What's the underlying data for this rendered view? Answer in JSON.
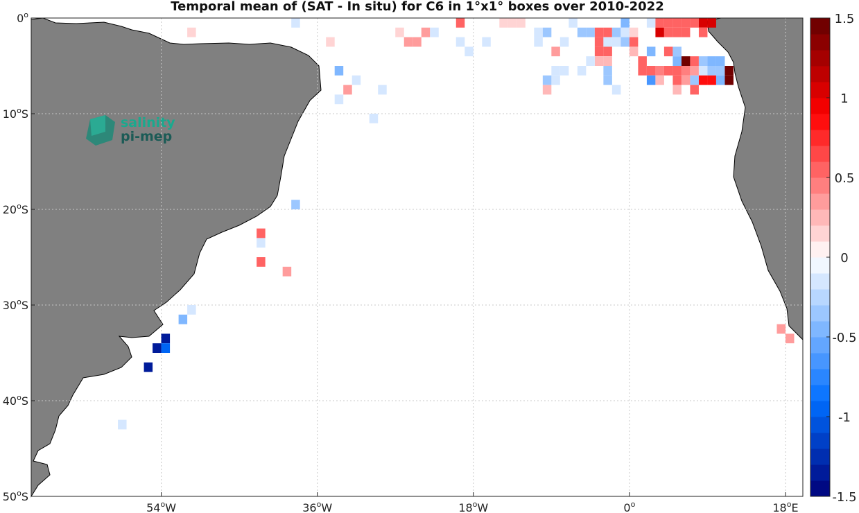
{
  "chart_data": {
    "type": "heatmap",
    "title": "Temporal mean of (SAT - In situ) for C6 in 1°x1° boxes over 2010-2022",
    "xlim": [
      -69,
      20
    ],
    "ylim": [
      -50,
      0
    ],
    "x_ticks": [
      {
        "value": -54,
        "label": "54",
        "hemi": "W"
      },
      {
        "value": -36,
        "label": "36",
        "hemi": "W"
      },
      {
        "value": -18,
        "label": "18",
        "hemi": "W"
      },
      {
        "value": 0,
        "label": "0",
        "hemi": ""
      },
      {
        "value": 18,
        "label": "18",
        "hemi": "E"
      }
    ],
    "y_ticks": [
      {
        "value": 0,
        "label": "0",
        "hemi": ""
      },
      {
        "value": -10,
        "label": "10",
        "hemi": "S"
      },
      {
        "value": -20,
        "label": "20",
        "hemi": "S"
      },
      {
        "value": -30,
        "label": "30",
        "hemi": "S"
      },
      {
        "value": -40,
        "label": "40",
        "hemi": "S"
      },
      {
        "value": -50,
        "label": "50",
        "hemi": "S"
      }
    ],
    "grid": true,
    "colorbar": {
      "min": -1.5,
      "max": 1.5,
      "levels": 30,
      "ticks": [
        {
          "value": 1.5,
          "label": "1.5"
        },
        {
          "value": 1,
          "label": "1"
        },
        {
          "value": 0.5,
          "label": "0.5"
        },
        {
          "value": 0,
          "label": "0"
        },
        {
          "value": -0.5,
          "label": "-0.5"
        },
        {
          "value": -1,
          "label": "-1"
        },
        {
          "value": -1.5,
          "label": "-1.5"
        }
      ]
    },
    "cells": [
      [
        -38.5,
        -0.5,
        -0.1
      ],
      [
        -50.5,
        -1.5,
        0.1
      ],
      [
        -34.5,
        -2.5,
        0.1
      ],
      [
        -25.5,
        -2.5,
        0.3
      ],
      [
        -24.5,
        -2.5,
        0.3
      ],
      [
        -26.5,
        -1.5,
        0.1
      ],
      [
        -23.5,
        -1.5,
        0.3
      ],
      [
        -22.5,
        -1.5,
        -0.2
      ],
      [
        -19.5,
        -0.5,
        0.5
      ],
      [
        -19.5,
        -2.5,
        -0.1
      ],
      [
        -18.5,
        -3.5,
        -0.1
      ],
      [
        -16.5,
        -2.5,
        -0.1
      ],
      [
        -14.5,
        -0.5,
        0.1
      ],
      [
        -13.5,
        -0.5,
        0.1
      ],
      [
        -12.5,
        -0.5,
        0.1
      ],
      [
        -10.5,
        -1.5,
        -0.1
      ],
      [
        -10.5,
        -2.5,
        -0.2
      ],
      [
        -9.5,
        -1.5,
        -0.3
      ],
      [
        -8.5,
        -3.5,
        0.3
      ],
      [
        -7.5,
        -2.5,
        -0.2
      ],
      [
        -6.5,
        -0.5,
        -0.2
      ],
      [
        -5.5,
        -1.5,
        -0.3
      ],
      [
        -4.5,
        -1.5,
        -0.3
      ],
      [
        -3.5,
        -1.5,
        0.5
      ],
      [
        -3.5,
        -2.5,
        0.5
      ],
      [
        -3.5,
        -3.5,
        0.5
      ],
      [
        -3.5,
        -4.5,
        0.2
      ],
      [
        -2.5,
        -1.5,
        0.5
      ],
      [
        -2.5,
        -2.5,
        -0.2
      ],
      [
        -2.5,
        -3.5,
        0.5
      ],
      [
        -2.5,
        -4.5,
        0.2
      ],
      [
        -1.5,
        -1.5,
        -0.3
      ],
      [
        -1.5,
        -2.5,
        -0.1
      ],
      [
        -0.5,
        -0.5,
        -0.5
      ],
      [
        -0.5,
        -1.5,
        -0.2
      ],
      [
        -0.5,
        -2.5,
        -0.3
      ],
      [
        0.5,
        -1.5,
        0.1
      ],
      [
        0.5,
        -2.5,
        0.5
      ],
      [
        0.5,
        -3.5,
        0.2
      ],
      [
        1.5,
        -4.5,
        0.5
      ],
      [
        1.5,
        -5.5,
        0.5
      ],
      [
        -8.5,
        -5.5,
        -0.1
      ],
      [
        -8.5,
        -6.5,
        -0.1
      ],
      [
        -7.5,
        -5.5,
        -0.1
      ],
      [
        -5.5,
        -5.5,
        -0.1
      ],
      [
        -4.5,
        -4.5,
        -0.1
      ],
      [
        -2.5,
        -5.5,
        -0.4
      ],
      [
        -2.5,
        -6.5,
        -0.3
      ],
      [
        -9.5,
        -6.5,
        -0.3
      ],
      [
        -9.5,
        -7.5,
        0.2
      ],
      [
        -1.5,
        -7.5,
        -0.1
      ],
      [
        2.5,
        -0.5,
        -0.1
      ],
      [
        3.5,
        -0.5,
        0.5
      ],
      [
        3.5,
        -1.5,
        1.0
      ],
      [
        4.5,
        -0.5,
        0.5
      ],
      [
        4.5,
        -1.5,
        0.5
      ],
      [
        5.5,
        -0.5,
        0.5
      ],
      [
        5.5,
        -1.5,
        0.5
      ],
      [
        6.5,
        -0.5,
        0.5
      ],
      [
        6.5,
        -1.5,
        0.5
      ],
      [
        7.5,
        -0.5,
        0.5
      ],
      [
        8.5,
        -0.5,
        1.0
      ],
      [
        9.5,
        -0.5,
        1.0
      ],
      [
        8.5,
        -1.5,
        0.5
      ],
      [
        2.5,
        -3.5,
        -0.5
      ],
      [
        4.5,
        -3.5,
        0.5
      ],
      [
        5.5,
        -3.5,
        -0.4
      ],
      [
        5.5,
        -4.5,
        -0.5
      ],
      [
        6.5,
        -4.5,
        1.5
      ],
      [
        7.5,
        -4.5,
        0.5
      ],
      [
        8.5,
        -4.5,
        -0.4
      ],
      [
        9.5,
        -4.5,
        -0.5
      ],
      [
        10.5,
        -4.5,
        -0.5
      ],
      [
        2.5,
        -5.5,
        0.5
      ],
      [
        3.5,
        -5.5,
        0.4
      ],
      [
        4.5,
        -5.5,
        0.5
      ],
      [
        5.5,
        -5.5,
        0.5
      ],
      [
        6.5,
        -5.5,
        0.4
      ],
      [
        7.5,
        -5.5,
        0.3
      ],
      [
        8.5,
        -5.5,
        -0.2
      ],
      [
        9.5,
        -5.5,
        -0.4
      ],
      [
        10.5,
        -5.5,
        -0.3
      ],
      [
        11.5,
        -5.5,
        1.5
      ],
      [
        2.5,
        -6.5,
        -0.7
      ],
      [
        3.5,
        -6.5,
        0.2
      ],
      [
        5.5,
        -6.5,
        0.5
      ],
      [
        6.5,
        -6.5,
        0.3
      ],
      [
        7.5,
        -6.5,
        -0.3
      ],
      [
        8.5,
        -6.5,
        0.8
      ],
      [
        9.5,
        -6.5,
        0.8
      ],
      [
        10.5,
        -6.5,
        -0.5
      ],
      [
        11.5,
        -6.5,
        1.5
      ],
      [
        5.5,
        -7.5,
        0.2
      ],
      [
        7.5,
        -7.5,
        0.5
      ],
      [
        -33.5,
        -5.5,
        -0.5
      ],
      [
        -31.5,
        -6.5,
        -0.1
      ],
      [
        -32.5,
        -7.5,
        0.3
      ],
      [
        -33.5,
        -8.5,
        -0.1
      ],
      [
        -28.5,
        -7.5,
        -0.1
      ],
      [
        -29.5,
        -10.5,
        -0.1
      ],
      [
        -38.5,
        -19.5,
        -0.3
      ],
      [
        -42.5,
        -22.5,
        0.5
      ],
      [
        -42.5,
        -23.5,
        -0.2
      ],
      [
        -42.5,
        -25.5,
        0.5
      ],
      [
        -39.5,
        -26.5,
        0.3
      ],
      [
        -50.5,
        -30.5,
        -0.2
      ],
      [
        -51.5,
        -31.5,
        -0.5
      ],
      [
        -53.5,
        -33.5,
        -1.3
      ],
      [
        -53.5,
        -34.5,
        -0.9
      ],
      [
        -54.5,
        -34.5,
        -1.4
      ],
      [
        -55.5,
        -36.5,
        -1.4
      ],
      [
        -58.5,
        -42.5,
        -0.1
      ],
      [
        17.5,
        -32.5,
        0.3
      ],
      [
        18.5,
        -33.5,
        0.3
      ]
    ]
  }
}
